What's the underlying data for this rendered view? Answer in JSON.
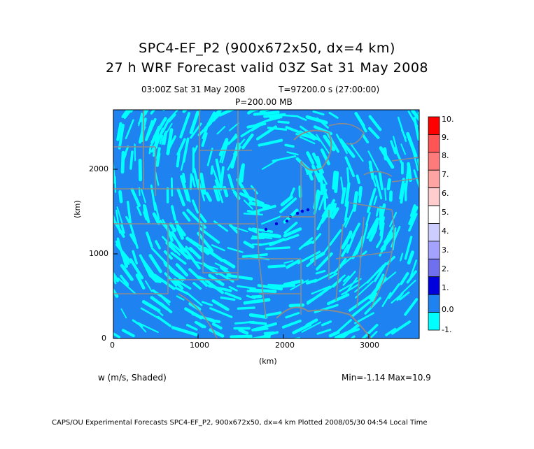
{
  "title": {
    "line1": "SPC4-EF_P2 (900x672x50, dx=4 km)",
    "line2": "27 h WRF Forecast valid 03Z Sat 31 May 2008"
  },
  "subtitle": {
    "valid_time": "03:00Z Sat 31 May 2008",
    "time_step": "T=97200.0 s (27:00:00)",
    "level": "P=200.00 MB"
  },
  "axes": {
    "x_ticks": [
      "0",
      "1000",
      "2000",
      "3000"
    ],
    "x_label": "(km)",
    "y_ticks": [
      "0",
      "1000",
      "2000"
    ],
    "y_label": "(km)"
  },
  "colorbar": {
    "labels": [
      "10.",
      "9.",
      "8.",
      "7.",
      "6.",
      "5.",
      "4.",
      "3.",
      "2.",
      "1.",
      "0.0",
      "-1."
    ],
    "colors": [
      "#ff0000",
      "#ff5555",
      "#ff7b7b",
      "#ffa3a3",
      "#ffcdcd",
      "#ffffff",
      "#cdcdff",
      "#a3a3ff",
      "#7070ee",
      "#0000dd",
      "#1e82f0",
      "#00ffff"
    ]
  },
  "field": {
    "variable": "w (m/s, Shaded)",
    "stats": "Min=-1.14 Max=10.9"
  },
  "footer": "CAPS/OU Experimental Forecasts  SPC4-EF_P2, 900x672x50, dx=4 km  Plotted 2008/05/30 04:54 Local Time"
}
